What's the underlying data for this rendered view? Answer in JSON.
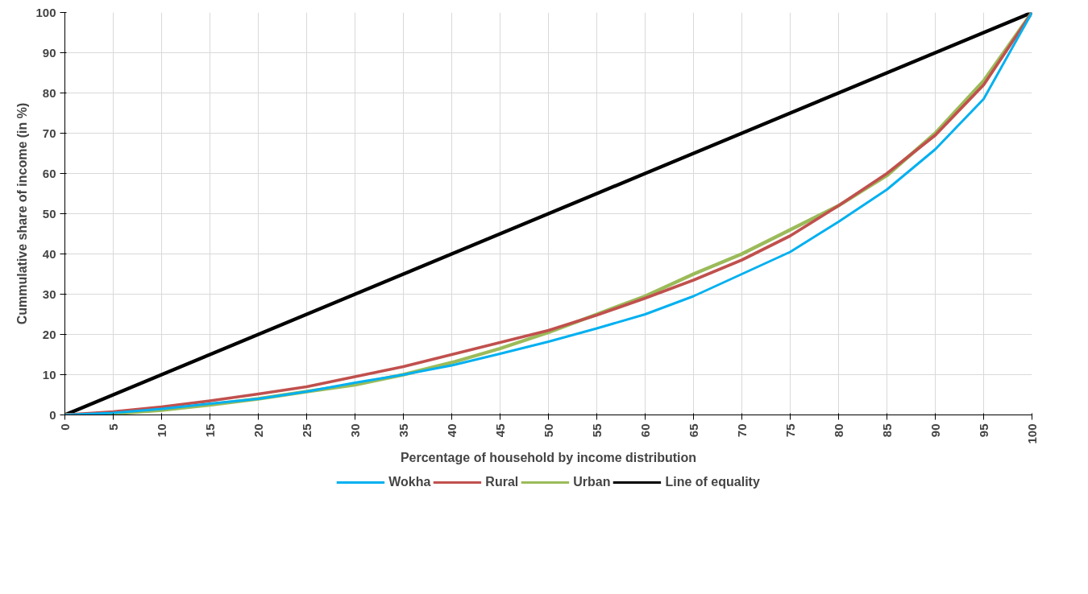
{
  "chart_data": {
    "type": "line",
    "xlabel": "Percentage of household by income distribution",
    "ylabel": "Cummulative share of income (in %)",
    "x": [
      0,
      5,
      10,
      15,
      20,
      25,
      30,
      35,
      40,
      45,
      50,
      55,
      60,
      65,
      70,
      75,
      80,
      85,
      90,
      95,
      100
    ],
    "series": [
      {
        "name": "Wokha",
        "color": "#00b0f0",
        "values": [
          0,
          0.5,
          1.5,
          2.8,
          4,
          5.8,
          8,
          10,
          12.3,
          15.2,
          18.2,
          21.5,
          25,
          29.5,
          35,
          40.5,
          48,
          56,
          66,
          78.5,
          100
        ]
      },
      {
        "name": "Rural",
        "color": "#c0504d",
        "values": [
          0,
          0.8,
          2,
          3.5,
          5.2,
          7,
          9.5,
          12,
          15,
          18,
          21,
          24.8,
          29,
          33.5,
          38.5,
          44.5,
          52,
          60,
          69.5,
          82,
          100
        ]
      },
      {
        "name": "Urban",
        "color": "#9bbb59",
        "values": [
          0,
          0.3,
          1.2,
          2.5,
          4,
          5.8,
          7.5,
          10,
          13,
          16.5,
          20.5,
          25,
          29.5,
          35,
          40,
          46,
          52,
          59.5,
          70,
          83,
          100
        ]
      },
      {
        "name": "Line of equality",
        "color": "#000000",
        "values": [
          0,
          5,
          10,
          15,
          20,
          25,
          30,
          35,
          40,
          45,
          50,
          55,
          60,
          65,
          70,
          75,
          80,
          85,
          90,
          95,
          100
        ]
      }
    ],
    "xlim": [
      0,
      100
    ],
    "xticks": [
      0,
      5,
      10,
      15,
      20,
      25,
      30,
      35,
      40,
      45,
      50,
      55,
      60,
      65,
      70,
      75,
      80,
      85,
      90,
      95,
      100
    ],
    "ylim": [
      0,
      100
    ],
    "yticks": [
      0,
      10,
      20,
      30,
      40,
      50,
      60,
      70,
      80,
      90,
      100
    ],
    "grid": true,
    "legend": "bottom",
    "marker": "none",
    "line_style": "solid"
  }
}
